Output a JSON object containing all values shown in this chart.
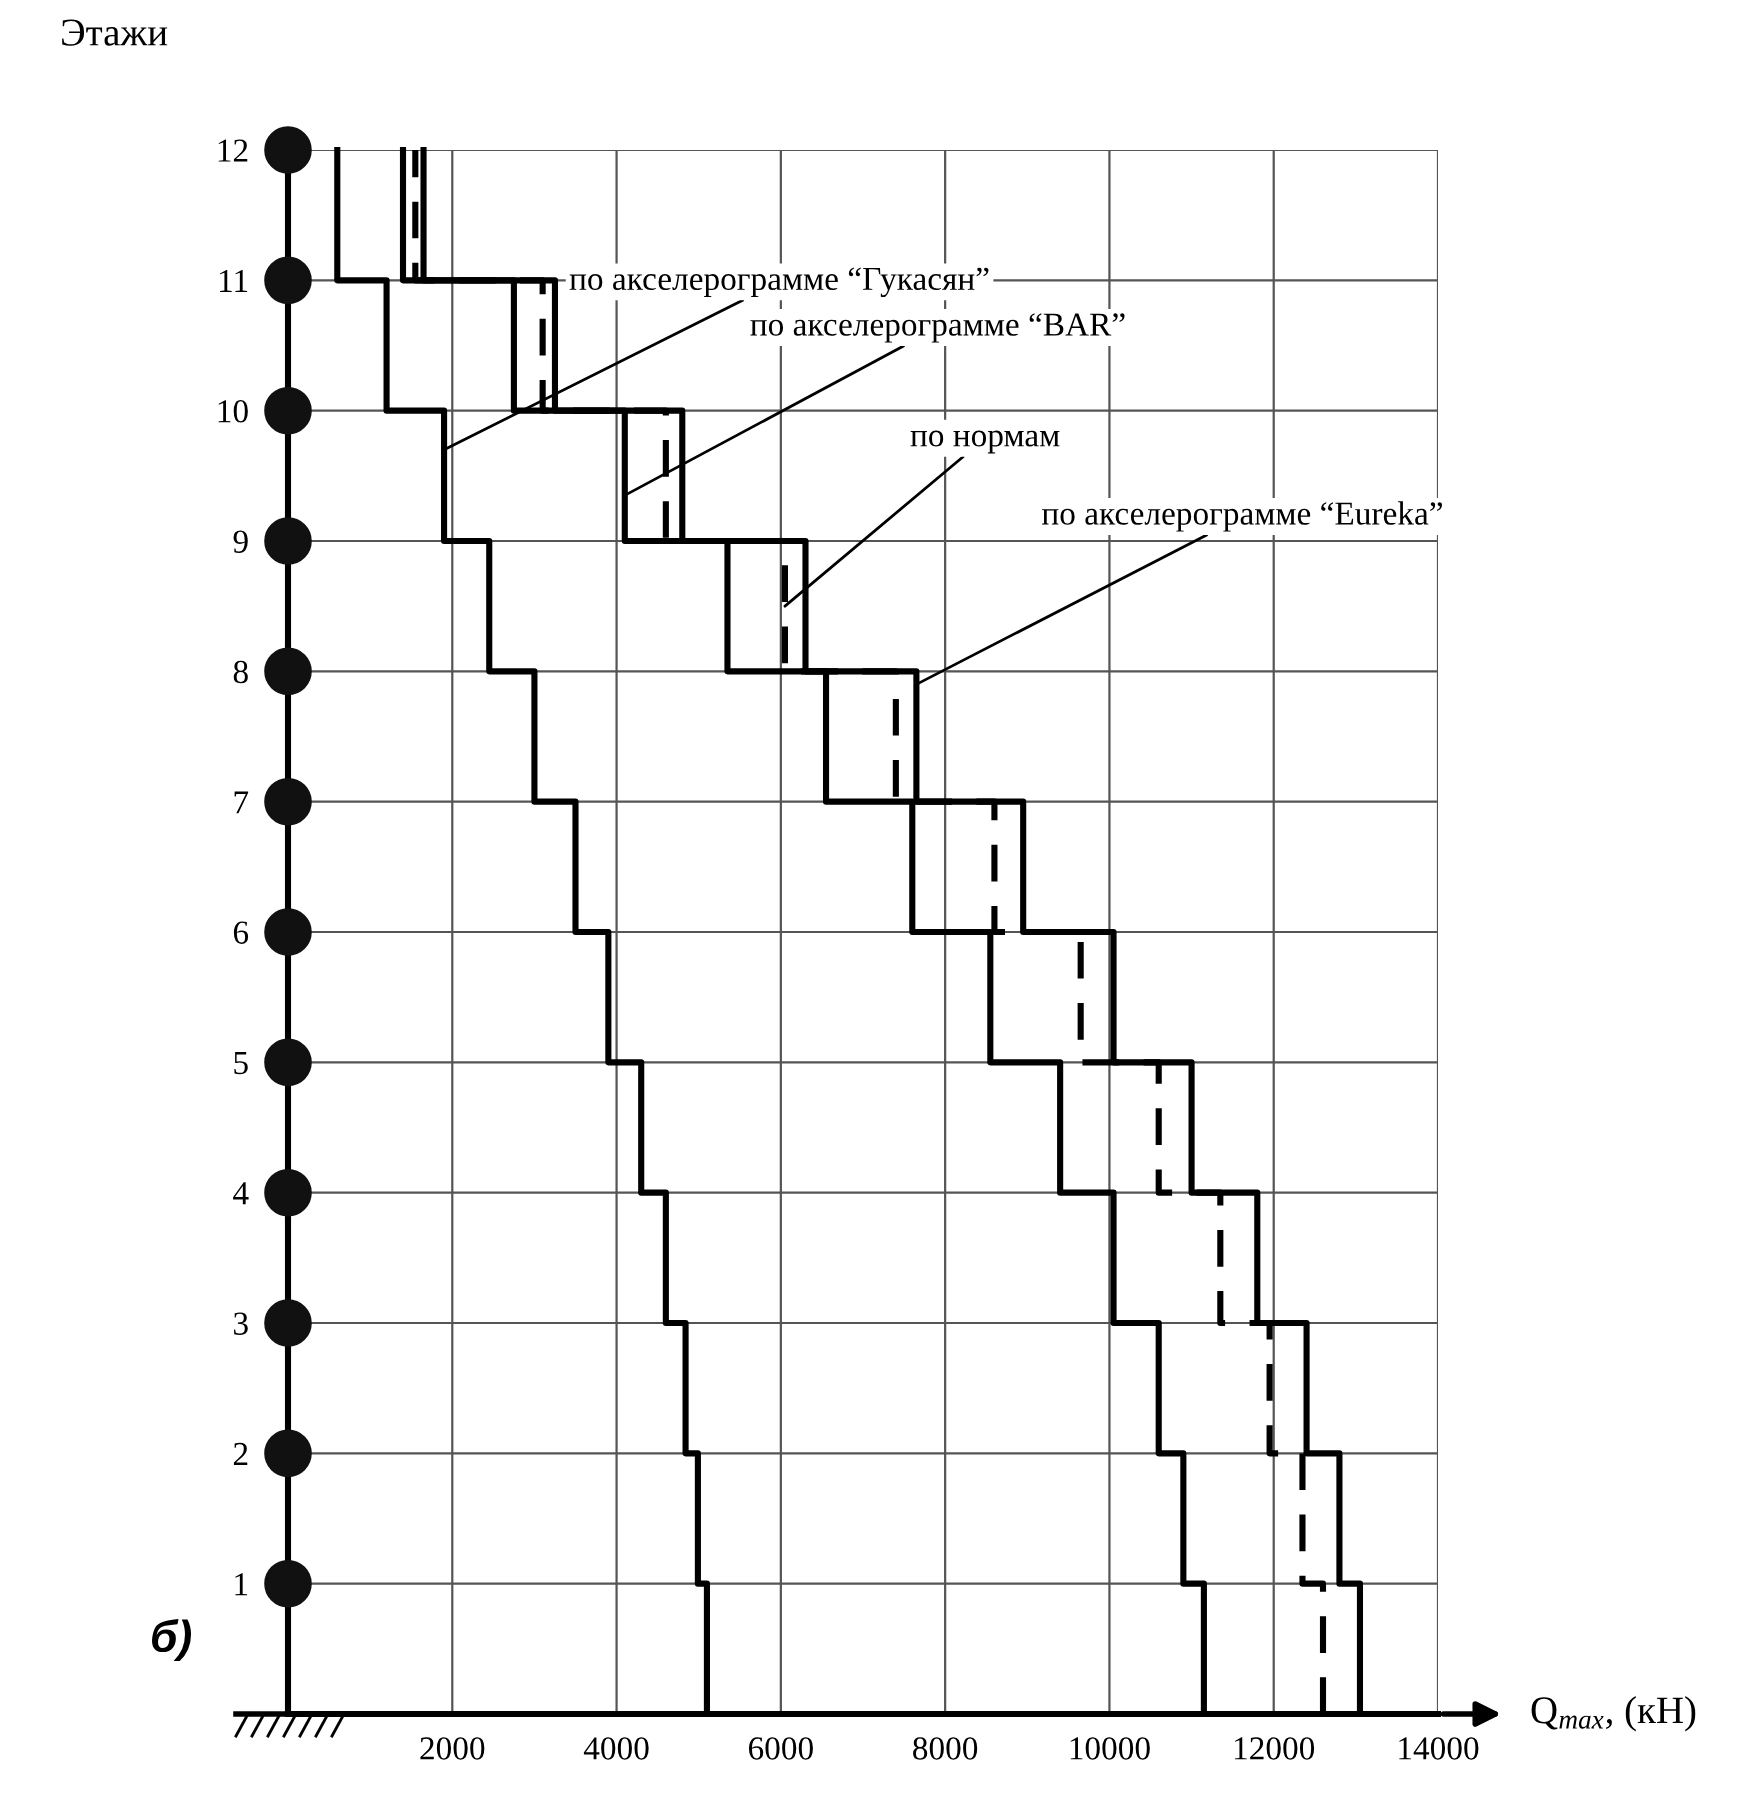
{
  "chart_data": {
    "type": "step",
    "orientation": "horizontal",
    "ylabel": "Этажи",
    "xlabel": "Q$_{max}$, (кН)",
    "x": [
      0,
      1,
      2,
      3,
      4,
      5,
      6,
      7,
      8,
      9,
      10,
      11,
      12
    ],
    "series": [
      {
        "color": "#000000",
        "line_style": "solid",
        "values": [
          5100,
          4990,
          4840,
          4600,
          4300,
          3900,
          3500,
          3000,
          2450,
          1900,
          1200,
          600,
          600
        ]
      },
      {
        "color": "#000000",
        "line_style": "solid",
        "values": [
          11150,
          10900,
          10600,
          10050,
          9400,
          8550,
          7600,
          6550,
          5350,
          4100,
          2750,
          1400,
          1400
        ]
      },
      {
        "color": "#000000",
        "line_style": "dashed",
        "values": [
          12600,
          12350,
          11950,
          11350,
          10600,
          9650,
          8600,
          7400,
          6050,
          4600,
          3100,
          1550,
          1550
        ]
      },
      {
        "color": "#000000",
        "line_style": "solid",
        "values": [
          13050,
          12800,
          12400,
          11800,
          11000,
          10050,
          8950,
          7650,
          6300,
          4800,
          3250,
          1650,
          1650
        ]
      }
    ],
    "xlim": [
      0,
      14000
    ],
    "xticks": [
      2000,
      4000,
      6000,
      8000,
      10000,
      12000,
      14000
    ],
    "ylim": [
      0,
      12
    ],
    "yticks": [
      1,
      2,
      3,
      4,
      5,
      6,
      7,
      8,
      9,
      10,
      11,
      12
    ],
    "grid": true,
    "annotations": [
      {
        "text": "по акселерограмме “Гукасян”",
        "x": 1900,
        "y": 9.7
      },
      {
        "text": "по акселерограмме “BAR”",
        "x": 4100,
        "y": 9.35
      },
      {
        "text": "по нормам",
        "x": 6050,
        "y": 8.5
      },
      {
        "text": "по акселерограмме “Eureka”",
        "x": 7650,
        "y": 7.9
      },
      "б)"
    ]
  }
}
